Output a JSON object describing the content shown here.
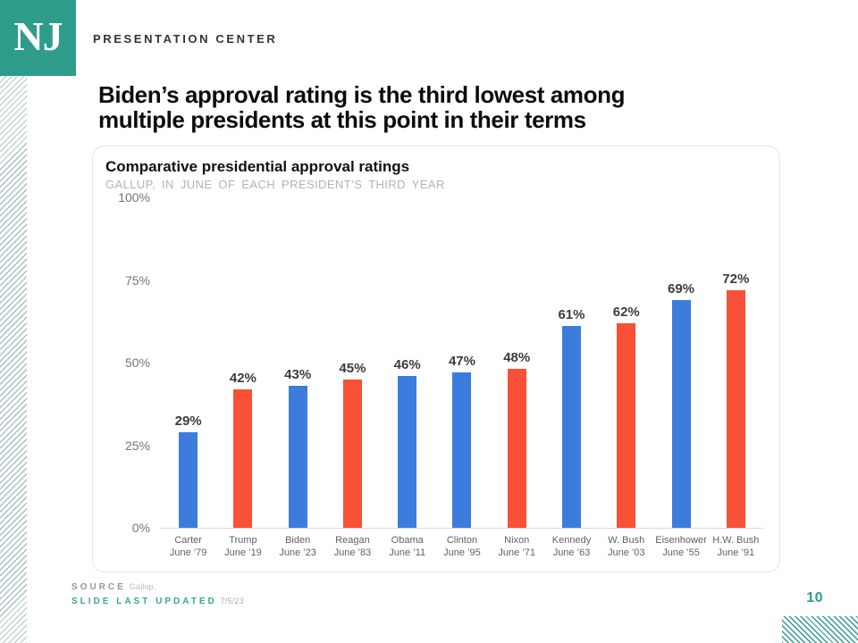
{
  "brand": {
    "logo_text": "NJ",
    "name": "PRESENTATION CENTER"
  },
  "slide": {
    "title_lines": [
      "Biden’s approval rating is the third lowest among",
      "multiple presidents at this point in their terms"
    ],
    "page_number": "10"
  },
  "footer": {
    "source_label": "SOURCE",
    "source_value": "Gallup.",
    "updated_label": "SLIDE LAST UPDATED",
    "updated_value": "7/5/23"
  },
  "colors": {
    "accent_teal": "#2E9C8B",
    "bar_blue": "#3C7CDC",
    "bar_red": "#F85136"
  },
  "chart_data": {
    "type": "bar",
    "title": "Comparative presidential approval ratings",
    "subtitle": "GALLUP, IN JUNE OF EACH PRESIDENT’S THIRD YEAR",
    "xlabel": "",
    "ylabel": "",
    "ylim": [
      0,
      100
    ],
    "grid": false,
    "legend": false,
    "y_ticks": [
      {
        "value": 0,
        "label": "0%"
      },
      {
        "value": 25,
        "label": "25%"
      },
      {
        "value": 50,
        "label": "50%"
      },
      {
        "value": 75,
        "label": "75%"
      },
      {
        "value": 100,
        "label": "100%"
      }
    ],
    "bars": [
      {
        "president": "Carter",
        "term_point": "June ’79",
        "value": 29,
        "label": "29%",
        "color_key": "blue"
      },
      {
        "president": "Trump",
        "term_point": "June ’19",
        "value": 42,
        "label": "42%",
        "color_key": "red"
      },
      {
        "president": "Biden",
        "term_point": "June ’23",
        "value": 43,
        "label": "43%",
        "color_key": "blue"
      },
      {
        "president": "Reagan",
        "term_point": "June ’83",
        "value": 45,
        "label": "45%",
        "color_key": "red"
      },
      {
        "president": "Obama",
        "term_point": "June ’11",
        "value": 46,
        "label": "46%",
        "color_key": "blue"
      },
      {
        "president": "Clinton",
        "term_point": "June ’95",
        "value": 47,
        "label": "47%",
        "color_key": "blue"
      },
      {
        "president": "Nixon",
        "term_point": "June ’71",
        "value": 48,
        "label": "48%",
        "color_key": "red"
      },
      {
        "president": "Kennedy",
        "term_point": "June ’63",
        "value": 61,
        "label": "61%",
        "color_key": "blue"
      },
      {
        "president": "W. Bush",
        "term_point": "June ’03",
        "value": 62,
        "label": "62%",
        "color_key": "red"
      },
      {
        "president": "Eisenhower",
        "term_point": "June ’55",
        "value": 69,
        "label": "69%",
        "color_key": "blue"
      },
      {
        "president": "H.W. Bush",
        "term_point": "June ’91",
        "value": 72,
        "label": "72%",
        "color_key": "red"
      }
    ]
  }
}
